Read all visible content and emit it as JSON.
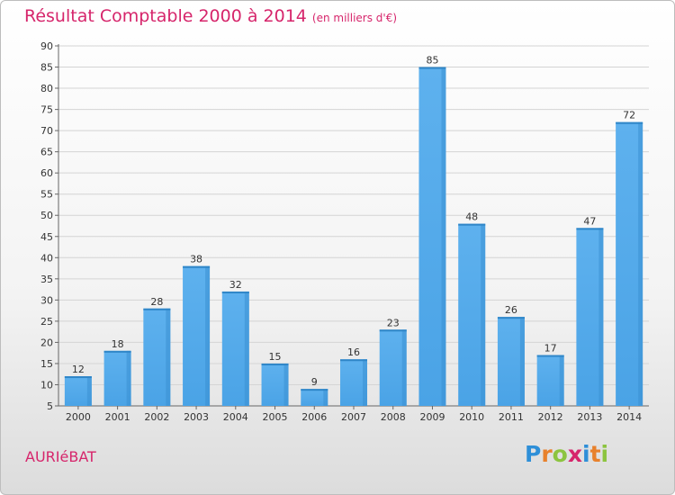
{
  "chart_data": {
    "type": "bar",
    "title": "Résultat Comptable 2000 à 2014",
    "unit_note": "(en milliers d'€)",
    "categories": [
      "2000",
      "2001",
      "2002",
      "2003",
      "2004",
      "2005",
      "2006",
      "2007",
      "2008",
      "2009",
      "2010",
      "2011",
      "2012",
      "2013",
      "2014"
    ],
    "values": [
      12,
      18,
      28,
      38,
      32,
      15,
      9,
      16,
      23,
      85,
      48,
      26,
      17,
      47,
      72
    ],
    "ylim": [
      5,
      90
    ],
    "yticks": [
      5,
      10,
      15,
      20,
      25,
      30,
      35,
      40,
      45,
      50,
      55,
      60,
      65,
      70,
      75,
      80,
      85,
      90
    ],
    "grid": true,
    "bar_color": "#4aa3e6"
  },
  "commune": "AURIéBAT",
  "brand": {
    "letters": [
      "P",
      "r",
      "o",
      "x",
      "i",
      "t",
      "i"
    ],
    "colors": [
      "#2e8fd8",
      "#e8812c",
      "#8cc43f",
      "#d6256b",
      "#2e8fd8",
      "#e8812c",
      "#8cc43f"
    ]
  }
}
